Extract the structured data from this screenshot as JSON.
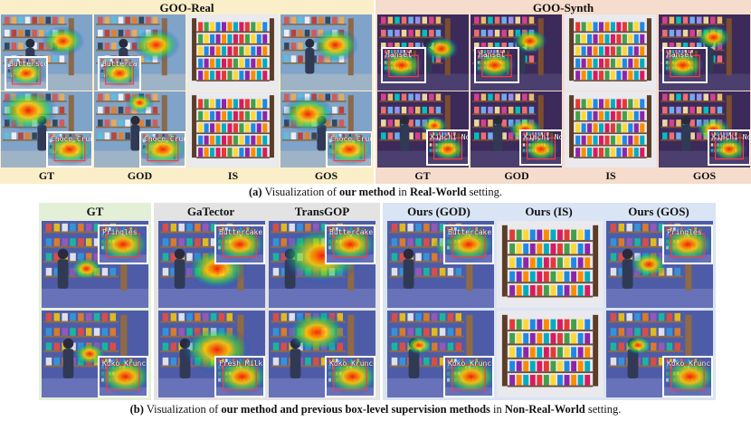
{
  "part_a": {
    "left_header": "GOO-Real",
    "right_header": "GOO-Synth",
    "columns_left": [
      "GT",
      "GOD",
      "IS",
      "GOS"
    ],
    "columns_right": [
      "GT",
      "GOD",
      "IS",
      "GOS"
    ],
    "caption_prefix": "(a)",
    "caption_t1": " Visualization of ",
    "caption_b1": "our method",
    "caption_t2": " in ",
    "caption_b2": "Real-World",
    "caption_t3": " setting."
  },
  "part_b": {
    "headers": [
      "GT",
      "GaTector",
      "TransGOP",
      "Ours (GOD)",
      "Ours (IS)",
      "Ours (GOS)"
    ],
    "caption_prefix": "(b)",
    "caption_t1": " Visualization of ",
    "caption_b1": "our method and previous box-level supervision methods",
    "caption_t2": " in ",
    "caption_b2": "Non-Real-World",
    "caption_t3": " setting."
  },
  "insets": {
    "a_real_row1": [
      "Butterscotch",
      "Butterca..."
    ],
    "a_real_row2": [
      "Choco Crunches",
      "Choco Crunches",
      "Choco Crunches"
    ],
    "a_synth_row1": [
      "Hansel",
      "Hansel",
      "Hansel"
    ],
    "a_synth_row2": [
      "Kimchi Noodles",
      "Kimchi Noodles",
      "Kimchi Noodles"
    ],
    "b_row1": [
      "Pringles",
      "Buttercake",
      "Buttercake",
      "Buttercake",
      "Pringles"
    ],
    "b_row2": [
      "Koko Krunch",
      "Fresh Milk",
      "Koko Krunch",
      "Koko Krunch",
      "Koko Krunch"
    ]
  },
  "colors": {
    "real_band": "#fbefc9",
    "synth_band": "#f6dccc",
    "b_gt_band": "#e4efd8",
    "b_prev_band": "#e3e3e3",
    "b_ours_band": "#d9e4f4"
  }
}
